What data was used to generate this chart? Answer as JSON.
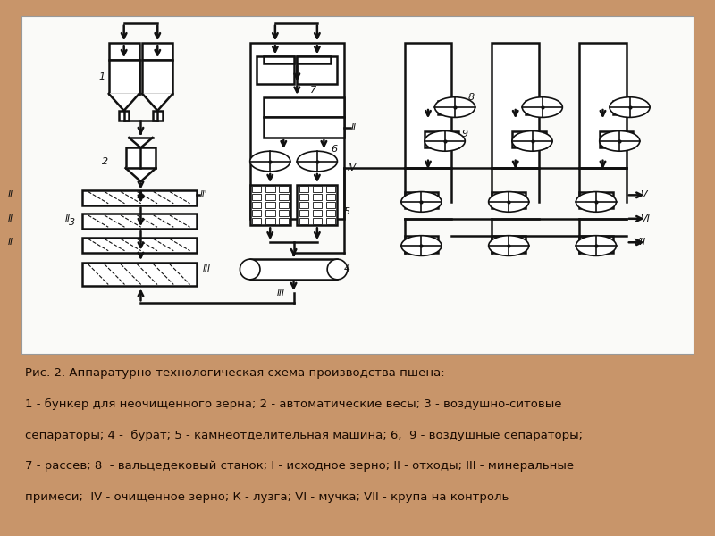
{
  "background_color": "#C8956A",
  "diagram_bg": "#FAFAF8",
  "line_color": "#111111",
  "text_color": "#1a0a00",
  "title_line1": "Рис. 2. Аппаратурно-технологическая схема производства пшена:",
  "title_line2": "1 - бункер для неочищенного зерна; 2 - автоматические весы; 3 - воздушно-ситовые",
  "title_line3": "сепараторы; 4 -  бурат; 5 - камнеотделительная машина; 6,  9 - воздушные сепараторы;",
  "title_line4": "7 - рассев; 8  - вальцедековый станок; I - исходное зерно; II - отходы; III - минеральные",
  "title_line5": "примеси;  IV - очищенное зерно; К - лузга; VI - мучка; VII - крупа на контроль",
  "caption_fontsize": 9.5
}
